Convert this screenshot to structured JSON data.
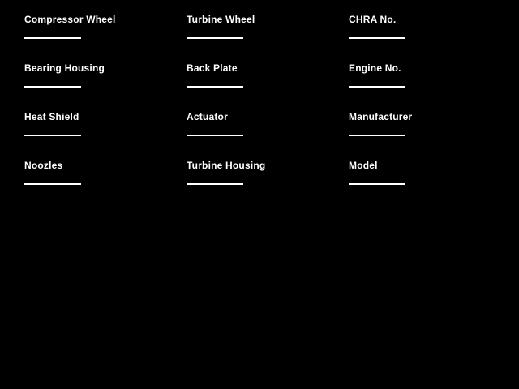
{
  "screen": {
    "background_color": "#000000",
    "text_color": "#ffffff"
  },
  "form": {
    "columns": [
      {
        "fields": [
          {
            "label": "Compressor Wheel",
            "value": ""
          },
          {
            "label": "Bearing Housing",
            "value": ""
          },
          {
            "label": "Heat Shield",
            "value": ""
          },
          {
            "label": "Noozles",
            "value": ""
          }
        ]
      },
      {
        "fields": [
          {
            "label": "Turbine Wheel",
            "value": ""
          },
          {
            "label": "Back Plate",
            "value": ""
          },
          {
            "label": "Actuator",
            "value": ""
          },
          {
            "label": "Turbine Housing",
            "value": ""
          }
        ]
      },
      {
        "fields": [
          {
            "label": "CHRA No.",
            "value": ""
          },
          {
            "label": "Engine No.",
            "value": ""
          },
          {
            "label": "Manufacturer",
            "value": ""
          },
          {
            "label": "Model",
            "value": ""
          }
        ]
      }
    ]
  }
}
